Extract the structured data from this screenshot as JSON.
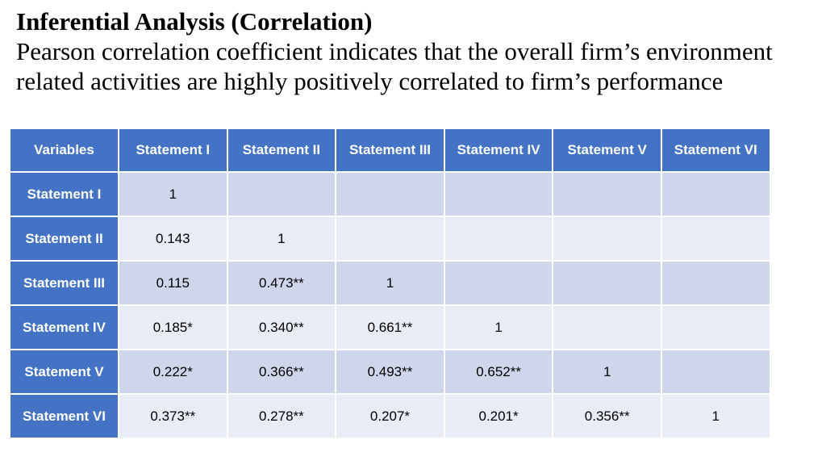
{
  "slide": {
    "heading": "Inferential Analysis (Correlation)",
    "body": "Pearson correlation coefficient indicates that the overall firm’s environment related activities are highly positively correlated to firm’s performance"
  },
  "table": {
    "columns": [
      "Variables",
      "Statement I",
      "Statement II",
      "Statement III",
      "Statement IV",
      "Statement V",
      "Statement VI"
    ],
    "rows": [
      {
        "label": "Statement I",
        "cells": [
          "1",
          "",
          "",
          "",
          "",
          ""
        ]
      },
      {
        "label": "Statement II",
        "cells": [
          "0.143",
          "1",
          "",
          "",
          "",
          ""
        ]
      },
      {
        "label": "Statement III",
        "cells": [
          "0.115",
          "0.473**",
          "1",
          "",
          "",
          ""
        ]
      },
      {
        "label": "Statement IV",
        "cells": [
          "0.185*",
          "0.340**",
          "0.661**",
          "1",
          "",
          ""
        ]
      },
      {
        "label": "Statement V",
        "cells": [
          "0.222*",
          "0.366**",
          "0.493**",
          "0.652**",
          "1",
          ""
        ]
      },
      {
        "label": "Statement VI",
        "cells": [
          "0.373**",
          "0.278**",
          "0.207*",
          "0.201*",
          "0.356**",
          "1"
        ]
      }
    ]
  },
  "colors": {
    "header_blue": "#4472c4",
    "row_band_dark": "#cfd5ea",
    "row_band_light": "#e9ebf5"
  }
}
